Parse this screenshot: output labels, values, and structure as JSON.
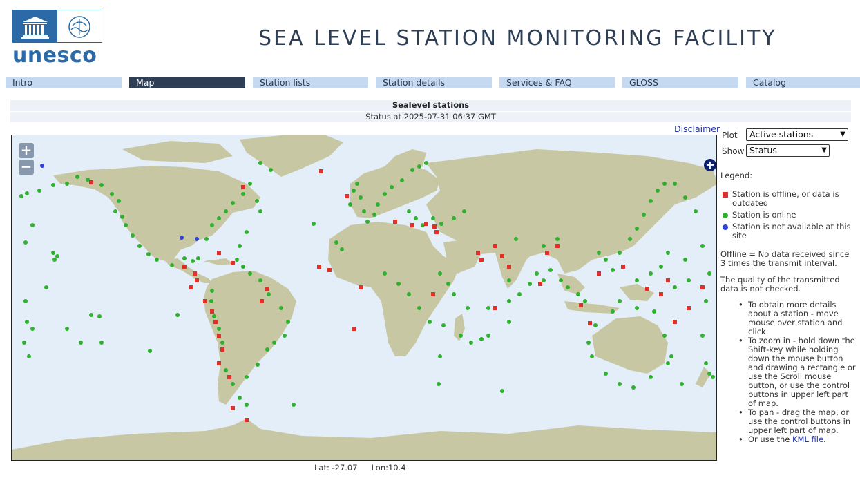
{
  "header": {
    "logo_text": "unesco",
    "title": "SEA LEVEL STATION MONITORING FACILITY"
  },
  "nav": {
    "tabs": [
      {
        "label": "Intro",
        "active": false
      },
      {
        "label": "Map",
        "active": true
      },
      {
        "label": "Station lists",
        "active": false
      },
      {
        "label": "Station details",
        "active": false
      },
      {
        "label": "Services & FAQ",
        "active": false
      },
      {
        "label": "GLOSS",
        "active": false
      },
      {
        "label": "Catalog",
        "active": false
      }
    ]
  },
  "status": {
    "heading": "Sealevel stations",
    "timestamp": "Status at 2025-07-31 06:37 GMT",
    "disclaimer": "Disclaimer"
  },
  "map": {
    "zoom_in": "+",
    "zoom_out": "−",
    "layer_switcher": "+",
    "lat_label": "Lat: -27.07",
    "lon_label": "Lon:10.4",
    "colors": {
      "ocean": "#e3eef8",
      "land": "#c8c7a3",
      "online": "#2fb02f",
      "offline": "#e0302a",
      "unavailable": "#2f3fd8"
    }
  },
  "controls": {
    "plot_label": "Plot",
    "plot_value": "Active stations",
    "show_label": "Show",
    "show_value": "Status"
  },
  "legend": {
    "title": "Legend:",
    "items": [
      {
        "text": "Station is offline, or data is outdated",
        "color": "#e0302a",
        "shape": "square"
      },
      {
        "text": "Station is online",
        "color": "#2fb02f",
        "shape": "circle"
      },
      {
        "text": "Station is not available at this site",
        "color": "#2f3fd8",
        "shape": "circle"
      }
    ]
  },
  "notes": {
    "offline": "Offline = No data received since 3 times the transmit interval.",
    "quality": "The quality of the transmitted data is not checked."
  },
  "tips": [
    "To obtain more details about a station - move mouse over station and click.",
    "To zoom in - hold down the Shift-key while holding down the mouse button and drawing a rectangle or use the Scroll mouse button, or use the control buttons in upper left part of map.",
    "To pan - drag the map, or use the control buttons in upper left part of map."
  ],
  "kml": {
    "prefix": "Or use the ",
    "link": "KML file",
    "suffix": "."
  }
}
